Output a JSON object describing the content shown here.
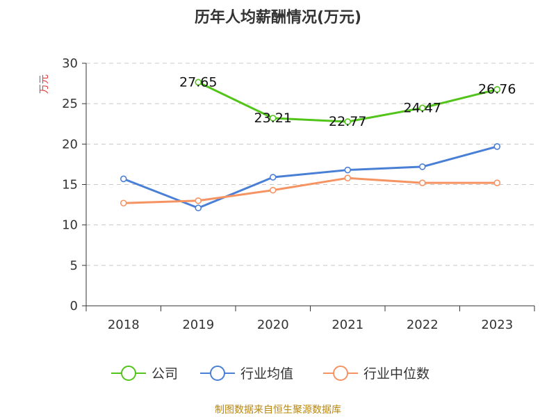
{
  "chart_data": {
    "type": "line",
    "title": "历年人均薪酬情况(万元)",
    "ylabel": "万元",
    "xlabel": "",
    "categories": [
      "2018",
      "2019",
      "2020",
      "2021",
      "2022",
      "2023"
    ],
    "ylim": [
      0,
      30
    ],
    "yticks": [
      0,
      5,
      10,
      15,
      20,
      25,
      30
    ],
    "grid": "horizontal-dashed",
    "legend_position": "bottom",
    "series": [
      {
        "name": "公司",
        "color": "#52c41a",
        "values": [
          null,
          27.65,
          23.21,
          22.77,
          24.47,
          26.76
        ],
        "labels": [
          "",
          "27.65",
          "23.21",
          "22.77",
          "24.47",
          "26.76"
        ]
      },
      {
        "name": "行业均值",
        "color": "#4a7fd6",
        "values": [
          15.7,
          12.1,
          15.9,
          16.8,
          17.2,
          19.7
        ]
      },
      {
        "name": "行业中位数",
        "color": "#f59362",
        "values": [
          12.7,
          13.0,
          14.3,
          15.8,
          15.2,
          15.2
        ]
      }
    ]
  },
  "source": "制图数据来自恒生聚源数据库"
}
